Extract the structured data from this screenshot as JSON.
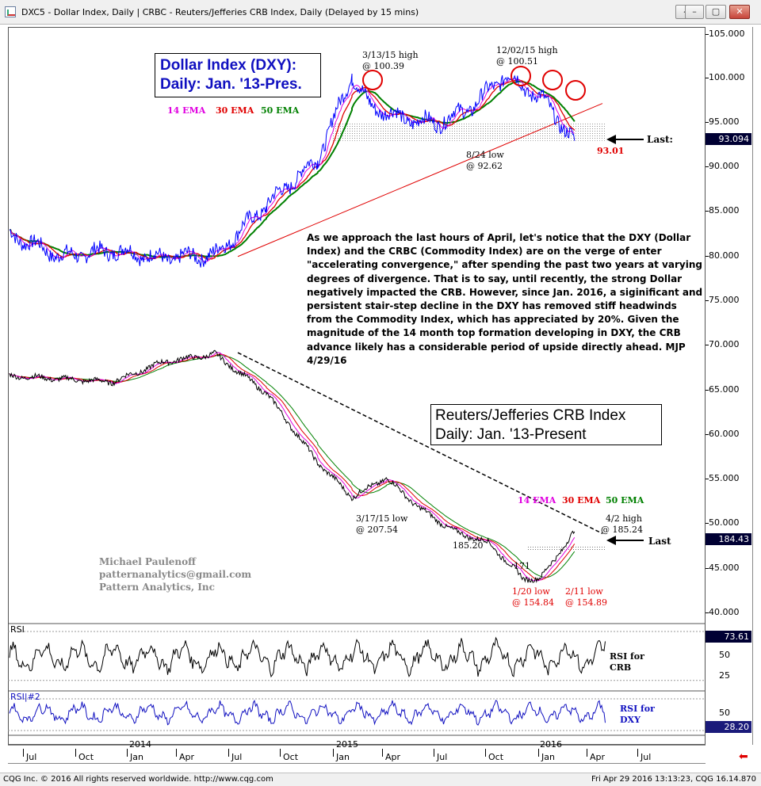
{
  "window": {
    "title": "DXC5 - Dollar Index, Daily   |   CRBC - Reuters/Jefferies CRB Index, Daily (Delayed by 15 mins)",
    "buttons": [
      "◂",
      "–",
      "▢",
      "✕"
    ]
  },
  "price_axis": {
    "labels": [
      "105.000",
      "100.000",
      "95.000",
      "90.000",
      "85.000",
      "80.000",
      "75.000",
      "70.000",
      "65.000",
      "60.000",
      "55.000",
      "50.000",
      "45.000",
      "40.000"
    ]
  },
  "last_values": {
    "dxy": "93.094",
    "crb": "184.43",
    "rsi_crb": "73.61",
    "rsi_dxy": "28.20"
  },
  "dxy_panel": {
    "title_line1": "Dollar Index (DXY):",
    "title_line2": "Daily: Jan. '13-Pres.",
    "legend": {
      "ema14": "14 EMA",
      "ema30": "30 EMA",
      "ema50": "50 EMA"
    },
    "annotations": {
      "high1_l1": "3/13/15 high",
      "high1_l2": "@ 100.39",
      "high2_l1": "12/02/15 high",
      "high2_l2": "@ 100.51",
      "low_l1": "8/24 low",
      "low_l2": "@ 92.62",
      "last_value": "93.01",
      "last_label": "Last:"
    }
  },
  "commentary": "As we approach the last hours of April, let's notice that the DXY (Dollar Index) and the CRBC (Commodity Index) are on the verge of enter \"accelerating convergence,\" after spending the past two years at varying degrees of divergence. That is to say, until recently, the strong Dollar negatively impacted the CRB. However, since Jan. 2016, a siginificant and persistent stair-step decline in the DXY has removed stiff headwinds from the Commodity Index, which has appreciated by 20%. Given the magnitude of the 14 month top formation developing in DXY, the CRB advance likely has a considerable period of upside directly ahead. MJP 4/29/16",
  "crb_panel": {
    "title_line1": "Reuters/Jefferies CRB Index",
    "title_line2": "Daily: Jan. '13-Present",
    "legend": {
      "ema14": "14 EMA",
      "ema30": "30 EMA",
      "ema50": "50 EMA"
    },
    "annotations": {
      "low1_l1": "3/17/15 low",
      "low1_l2": "@ 207.54",
      "mid_low": "185.20",
      "level_171": "171",
      "low2_l1": "1/20 low",
      "low2_l2": "@ 154.84",
      "low3_l1": "2/11 low",
      "low3_l2": "@ 154.89",
      "high_l1": "4/2 high",
      "high_l2": "@ 185.24",
      "last_label": "Last"
    }
  },
  "signature": {
    "name": "Michael Paulenoff",
    "email": "patternanalytics@gmail.com",
    "company": "Pattern Analytics, Inc"
  },
  "rsi_crb": {
    "label": "RSI",
    "levels": [
      "50",
      "25"
    ],
    "caption_l1": "RSI for",
    "caption_l2": "CRB"
  },
  "rsi_dxy": {
    "label": "RSI|#2",
    "levels": [
      "50"
    ],
    "caption_l1": "RSI for",
    "caption_l2": "DXY"
  },
  "time_axis": {
    "months": [
      "Jul",
      "Oct",
      "Jan",
      "Apr",
      "Jul",
      "Oct",
      "Jan",
      "Apr",
      "Jul",
      "Oct",
      "Jan",
      "Apr",
      "Jul"
    ],
    "years": [
      "2014",
      "2015",
      "2016"
    ]
  },
  "status_bar": {
    "left": "CQG Inc. © 2016 All rights reserved worldwide. http://www.cqg.com",
    "right": "Fri Apr 29 2016 13:13:23, CQG 16.14.870"
  },
  "colors": {
    "price": "#0000ff",
    "price_crb": "#000000",
    "ema14": "#e000e0",
    "ema30": "#e00000",
    "ema50": "#008000",
    "annotation_red": "#e00000",
    "title_blue": "#1010c0"
  },
  "chart_data": [
    {
      "type": "line",
      "title": "Dollar Index (DXY): Daily: Jan. '13-Pres.",
      "series": [
        {
          "name": "DXY",
          "x": [
            "2013-07",
            "2013-10",
            "2014-01",
            "2014-04",
            "2014-07",
            "2014-10",
            "2015-01",
            "2015-03",
            "2015-04",
            "2015-06",
            "2015-08",
            "2015-10",
            "2015-12",
            "2016-01",
            "2016-02",
            "2016-03",
            "2016-04"
          ],
          "values": [
            82.5,
            80.0,
            80.7,
            79.8,
            80.2,
            85.8,
            91.0,
            100.39,
            97.0,
            95.5,
            95.0,
            96.8,
            100.51,
            99.0,
            98.0,
            95.5,
            93.01
          ]
        },
        {
          "name": "14 EMA"
        },
        {
          "name": "30 EMA"
        },
        {
          "name": "50 EMA"
        }
      ],
      "annotations": [
        "3/13/15 high @ 100.39",
        "12/02/15 high @ 100.51",
        "8/24 low @ 92.62",
        "93.01"
      ],
      "last": 93.094
    },
    {
      "type": "line",
      "title": "Reuters/Jefferies CRB Index Daily: Jan. '13-Present",
      "series": [
        {
          "name": "CRB",
          "x": [
            "2013-07",
            "2013-10",
            "2014-01",
            "2014-04",
            "2014-07",
            "2014-10",
            "2015-01",
            "2015-03",
            "2015-05",
            "2015-07",
            "2015-09",
            "2015-11",
            "2016-01",
            "2016-02",
            "2016-04"
          ],
          "values": [
            286,
            284,
            282,
            295,
            300,
            275,
            230,
            207.54,
            220,
            200,
            185.2,
            178,
            154.84,
            154.89,
            185.24
          ]
        },
        {
          "name": "14 EMA"
        },
        {
          "name": "30 EMA"
        },
        {
          "name": "50 EMA"
        }
      ],
      "annotations": [
        "3/17/15 low @ 207.54",
        "185.20",
        "171",
        "1/20 low @ 154.84",
        "2/11 low @ 154.89",
        "4/2 high @ 185.24"
      ],
      "last": 184.43
    },
    {
      "type": "line",
      "title": "RSI for CRB",
      "last": 73.61,
      "levels": [
        50,
        25
      ]
    },
    {
      "type": "line",
      "title": "RSI for DXY",
      "last": 28.2,
      "levels": [
        50
      ]
    }
  ]
}
